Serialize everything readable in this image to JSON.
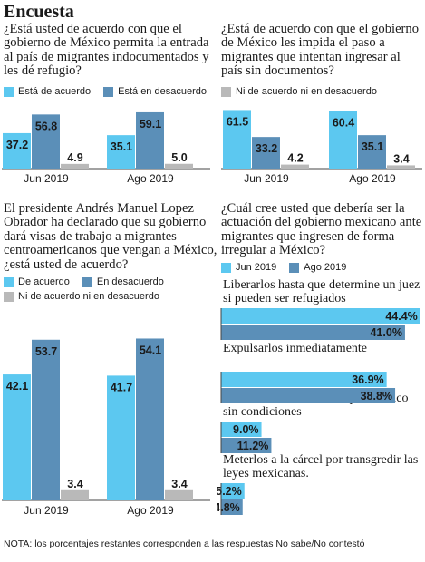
{
  "page": {
    "title": "Encuesta",
    "note": "NOTA: los porcentajes restantes corresponden a las respuestas No sabe/No contestó"
  },
  "colors": {
    "light": "#5cc8f0",
    "dark": "#5b8fb8",
    "gray": "#b9b9b9",
    "line": "#444444"
  },
  "chart_data": [
    {
      "type": "bar",
      "question": "¿Está usted de acuerdo con que el gobierno de México permita la entrada al país de migrantes indocumentados y les dé refugio?",
      "categories": [
        "Jun 2019",
        "Ago 2019"
      ],
      "legend": [
        "Está de acuerdo",
        "Está en desacuerdo",
        "Ni de acuerdo ni en desacuerdo"
      ],
      "series": [
        {
          "name": "Está de acuerdo",
          "values": [
            37.2,
            35.1
          ]
        },
        {
          "name": "Está en desacuerdo",
          "values": [
            56.8,
            59.1
          ]
        },
        {
          "name": "Ni de acuerdo ni en desacuerdo",
          "values": [
            4.9,
            5.0
          ]
        }
      ]
    },
    {
      "type": "bar",
      "question": "¿Está de acuerdo con que el gobierno de México les impida el paso a migrantes que intentan ingresar al país sin documentos?",
      "categories": [
        "Jun 2019",
        "Ago 2019"
      ],
      "series": [
        {
          "name": "Está de acuerdo",
          "values": [
            61.5,
            60.4
          ]
        },
        {
          "name": "Está en desacuerdo",
          "values": [
            33.2,
            35.1
          ]
        },
        {
          "name": "Ni de acuerdo ni en desacuerdo",
          "values": [
            4.2,
            3.4
          ]
        }
      ]
    },
    {
      "type": "bar",
      "question": "El presidente Andrés Manuel Lopez Obrador ha declarado que su gobierno dará visas de trabajo a migrantes centroamericanos que vengan a México, ¿está usted de acuerdo?",
      "categories": [
        "Jun 2019",
        "Ago 2019"
      ],
      "legend": [
        "De acuerdo",
        "En desacuerdo",
        "Ni de acuerdo ni en desacuerdo"
      ],
      "series": [
        {
          "name": "De acuerdo",
          "values": [
            42.1,
            41.7
          ]
        },
        {
          "name": "En desacuerdo",
          "values": [
            53.7,
            54.1
          ]
        },
        {
          "name": "Ni de acuerdo ni en desacuerdo",
          "values": [
            3.4,
            3.4
          ]
        }
      ]
    },
    {
      "type": "bar",
      "orientation": "horizontal",
      "question": "¿Cuál cree usted que debería ser la actuación del gobierno mexicano ante migrantes que ingresen de forma irregular a México?",
      "legend": [
        "Jun 2019",
        "Ago 2019"
      ],
      "categories": [
        "Liberarlos hasta que debería que determine un juez si pueden ser refugiados",
        "Expulsarlos inmediatamente",
        "Permitirles libre tránsito por México sin condiciones",
        "Meterlos a la cárcel por transgredir las leyes mexicanas."
      ],
      "display_categories": [
        "Liberarlos hasta que determine un juez si pueden ser refugiados",
        "Expulsarlos inmediatamente",
        "Permitirles libre tránsito por México sin condiciones",
        "Meterlos a la cárcel por transgredir las leyes mexicanas."
      ],
      "series": [
        {
          "name": "Jun 2019",
          "values": [
            44.4,
            36.9,
            9.0,
            5.2
          ]
        },
        {
          "name": "Ago 2019",
          "values": [
            41.0,
            38.8,
            11.2,
            4.8
          ]
        }
      ],
      "labels": [
        [
          "44.4%",
          "41.0%"
        ],
        [
          "36.9%",
          "38.8%"
        ],
        [
          "9.0%",
          "11.2%"
        ],
        [
          "5.2%",
          "4.8%"
        ]
      ]
    }
  ]
}
